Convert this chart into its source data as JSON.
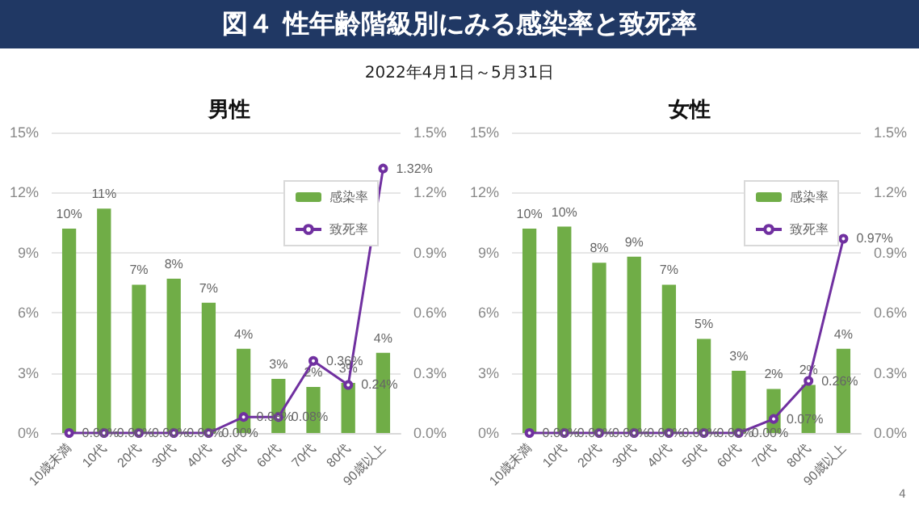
{
  "chart_data": [
    {
      "type": "other",
      "title": "図４ 性年齢階級別にみる感染率と致死率",
      "subtitle": "2022年4月1日～5月31日"
    },
    {
      "type": "bar",
      "title": "男性",
      "categories": [
        "10歳未満",
        "10代",
        "20代",
        "30代",
        "40代",
        "50代",
        "60代",
        "70代",
        "80代",
        "90歳以上"
      ],
      "series": [
        {
          "name": "感染率",
          "type": "bar",
          "color": "#70ad47",
          "values": [
            10.2,
            11.2,
            7.4,
            7.7,
            6.5,
            4.2,
            2.7,
            2.3,
            2.5,
            4.0
          ],
          "value_labels": [
            "10%",
            "11%",
            "7%",
            "8%",
            "7%",
            "4%",
            "3%",
            "2%",
            "3%",
            "4%"
          ]
        },
        {
          "name": "致死率",
          "type": "line",
          "axis": "y2",
          "color": "#7030a0",
          "values": [
            0,
            0,
            0,
            0,
            0,
            0.08,
            0.08,
            0.36,
            0.24,
            1.32
          ],
          "value_labels": [
            "0.00%",
            "0.00%",
            "0.00%",
            "0.00%",
            "0.00%",
            "0.08%",
            "0.08%",
            "0.36%",
            "0.24%",
            "1.32%"
          ]
        }
      ],
      "ylim": [
        0,
        15
      ],
      "yticks": [
        {
          "value": 0,
          "label": "0%"
        },
        {
          "value": 3,
          "label": "3%"
        },
        {
          "value": 6,
          "label": "6%"
        },
        {
          "value": 9,
          "label": "9%"
        },
        {
          "value": 12,
          "label": "12%"
        },
        {
          "value": 15,
          "label": "15%"
        }
      ],
      "y2lim": [
        0,
        1.5
      ],
      "y2ticks": [
        {
          "value": 0,
          "label": "0.0%"
        },
        {
          "value": 0.3,
          "label": "0.3%"
        },
        {
          "value": 0.6,
          "label": "0.6%"
        },
        {
          "value": 0.9,
          "label": "0.9%"
        },
        {
          "value": 1.2,
          "label": "1.2%"
        },
        {
          "value": 1.5,
          "label": "1.5%"
        }
      ],
      "grid": "y",
      "legend": "top right",
      "marker": "circle"
    },
    {
      "type": "bar",
      "title": "女性",
      "categories": [
        "10歳未満",
        "10代",
        "20代",
        "30代",
        "40代",
        "50代",
        "60代",
        "70代",
        "80代",
        "90歳以上"
      ],
      "series": [
        {
          "name": "感染率",
          "type": "bar",
          "color": "#70ad47",
          "values": [
            10.2,
            10.3,
            8.5,
            8.8,
            7.4,
            4.7,
            3.1,
            2.2,
            2.4,
            4.2
          ],
          "value_labels": [
            "10%",
            "10%",
            "8%",
            "9%",
            "7%",
            "5%",
            "3%",
            "2%",
            "2%",
            "4%"
          ]
        },
        {
          "name": "致死率",
          "type": "line",
          "axis": "y2",
          "color": "#7030a0",
          "values": [
            0,
            0,
            0,
            0,
            0,
            0,
            0,
            0.07,
            0.26,
            0.97
          ],
          "value_labels": [
            "0.00%",
            "0.00%",
            "0.00%",
            "0.00%",
            "0.00%",
            "0.00%",
            "0.00%",
            "0.07%",
            "0.26%",
            "0.97%"
          ]
        }
      ],
      "ylim": [
        0,
        15
      ],
      "yticks": [
        {
          "value": 0,
          "label": "0%"
        },
        {
          "value": 3,
          "label": "3%"
        },
        {
          "value": 6,
          "label": "6%"
        },
        {
          "value": 9,
          "label": "9%"
        },
        {
          "value": 12,
          "label": "12%"
        },
        {
          "value": 15,
          "label": "15%"
        }
      ],
      "y2lim": [
        0,
        1.5
      ],
      "y2ticks": [
        {
          "value": 0,
          "label": "0.0%"
        },
        {
          "value": 0.3,
          "label": "0.3%"
        },
        {
          "value": 0.6,
          "label": "0.6%"
        },
        {
          "value": 0.9,
          "label": "0.9%"
        },
        {
          "value": 1.2,
          "label": "1.2%"
        },
        {
          "value": 1.5,
          "label": "1.5%"
        }
      ],
      "grid": "y",
      "legend": "top right",
      "marker": "circle",
      "annotations": [
        "4"
      ]
    }
  ]
}
